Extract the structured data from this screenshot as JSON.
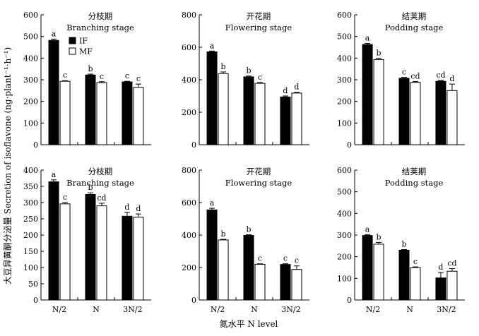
{
  "figure": {
    "ylabel": "大豆异黄酮分泌量 Secretion of isoflavone (ng·plant⁻¹·h⁻¹)",
    "xlabel": "氮水平 N level",
    "legend": [
      "IF",
      "MF"
    ],
    "colors": {
      "IF": "#000000",
      "MF": "#ffffff"
    }
  },
  "chart_data": [
    {
      "type": "bar",
      "title_cn": "分枝期",
      "title_en": "Branching stage",
      "categories": [
        "N/2",
        "N",
        "3N/2"
      ],
      "ylim": [
        0,
        600
      ],
      "yticks": [
        0,
        100,
        200,
        300,
        400,
        500,
        600
      ],
      "series": [
        {
          "name": "IF",
          "values": [
            482,
            322,
            290
          ],
          "errors": [
            6,
            4,
            3
          ],
          "letters": [
            "a",
            "b",
            "c"
          ]
        },
        {
          "name": "MF",
          "values": [
            293,
            287,
            265
          ],
          "errors": [
            3,
            4,
            15
          ],
          "letters": [
            "c",
            "c",
            "c"
          ]
        }
      ]
    },
    {
      "type": "bar",
      "title_cn": "开花期",
      "title_en": "Flowering stage",
      "categories": [
        "N/2",
        "N",
        "3N/2"
      ],
      "ylim": [
        0,
        800
      ],
      "yticks": [
        0,
        200,
        400,
        600,
        800
      ],
      "series": [
        {
          "name": "IF",
          "values": [
            572,
            418,
            294
          ],
          "errors": [
            5,
            5,
            6
          ],
          "letters": [
            "a",
            "b",
            "d"
          ]
        },
        {
          "name": "MF",
          "values": [
            438,
            378,
            318
          ],
          "errors": [
            10,
            5,
            5
          ],
          "letters": [
            "b",
            "c",
            "d"
          ]
        }
      ]
    },
    {
      "type": "bar",
      "title_cn": "结荚期",
      "title_en": "Podding stage",
      "categories": [
        "N/2",
        "N",
        "3N/2"
      ],
      "ylim": [
        0,
        600
      ],
      "yticks": [
        0,
        100,
        200,
        300,
        400,
        500,
        600
      ],
      "series": [
        {
          "name": "IF",
          "values": [
            463,
            307,
            293
          ],
          "errors": [
            5,
            4,
            4
          ],
          "letters": [
            "a",
            "c",
            "cd"
          ]
        },
        {
          "name": "MF",
          "values": [
            393,
            288,
            250
          ],
          "errors": [
            6,
            4,
            30
          ],
          "letters": [
            "b",
            "cd",
            "d"
          ]
        }
      ]
    },
    {
      "type": "bar",
      "title_cn": "分枝期",
      "title_en": "Branching stage",
      "categories": [
        "N/2",
        "N",
        "3N/2"
      ],
      "ylim": [
        0,
        400
      ],
      "yticks": [
        0,
        50,
        100,
        150,
        200,
        250,
        300,
        350,
        400
      ],
      "series": [
        {
          "name": "IF",
          "values": [
            364,
            325,
            258
          ],
          "errors": [
            6,
            5,
            12
          ],
          "letters": [
            "a",
            "b",
            "d"
          ]
        },
        {
          "name": "MF",
          "values": [
            296,
            290,
            255
          ],
          "errors": [
            4,
            8,
            10
          ],
          "letters": [
            "c",
            "cd",
            "d"
          ]
        }
      ]
    },
    {
      "type": "bar",
      "title_cn": "开花期",
      "title_en": "Flowering stage",
      "categories": [
        "N/2",
        "N",
        "3N/2"
      ],
      "ylim": [
        0,
        800
      ],
      "yticks": [
        0,
        200,
        400,
        600,
        800
      ],
      "series": [
        {
          "name": "IF",
          "values": [
            555,
            398,
            219
          ],
          "errors": [
            10,
            4,
            4
          ],
          "letters": [
            "a",
            "b",
            "c"
          ]
        },
        {
          "name": "MF",
          "values": [
            370,
            220,
            188
          ],
          "errors": [
            4,
            3,
            22
          ],
          "letters": [
            "b",
            "c",
            "c"
          ]
        }
      ]
    },
    {
      "type": "bar",
      "title_cn": "结荚期",
      "title_en": "Podding stage",
      "categories": [
        "N/2",
        "N",
        "3N/2"
      ],
      "ylim": [
        0,
        600
      ],
      "yticks": [
        0,
        100,
        200,
        300,
        400,
        500,
        600
      ],
      "series": [
        {
          "name": "IF",
          "values": [
            298,
            230,
            102
          ],
          "errors": [
            4,
            3,
            25
          ],
          "letters": [
            "a",
            "b",
            "d"
          ]
        },
        {
          "name": "MF",
          "values": [
            258,
            150,
            133
          ],
          "errors": [
            8,
            3,
            12
          ],
          "letters": [
            "b",
            "c",
            "cd"
          ]
        }
      ]
    }
  ]
}
